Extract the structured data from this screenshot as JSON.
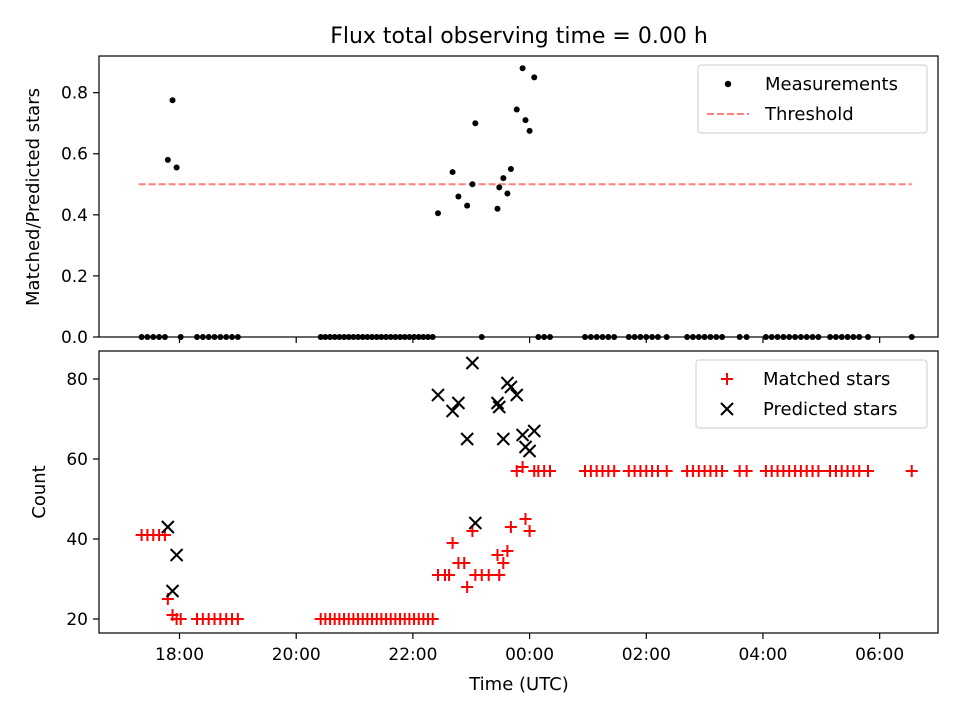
{
  "title": "Flux total observing time = 0.00 h",
  "colors": {
    "measure": "#000000",
    "threshold": "#ff7f7f",
    "matched": "#ff0000",
    "predicted": "#000000"
  },
  "chart_data": [
    {
      "type": "scatter",
      "panel": "top",
      "ylabel": "Matched/Predicted stars",
      "ylim": [
        0,
        0.92
      ],
      "yticks": [
        0.0,
        0.2,
        0.4,
        0.6,
        0.8
      ],
      "ytick_labels": [
        "0.0",
        "0.2",
        "0.4",
        "0.6",
        "0.8"
      ],
      "legend_position": "upper right",
      "series": [
        {
          "name": "Measurements",
          "marker": "dot",
          "points": [
            [
              17.35,
              0
            ],
            [
              17.45,
              0
            ],
            [
              17.55,
              0
            ],
            [
              17.65,
              0
            ],
            [
              17.75,
              0
            ],
            [
              17.8,
              0.58
            ],
            [
              17.88,
              0.775
            ],
            [
              17.95,
              0.555
            ],
            [
              18.02,
              0
            ],
            [
              18.3,
              0
            ],
            [
              18.4,
              0
            ],
            [
              18.5,
              0
            ],
            [
              18.6,
              0
            ],
            [
              18.7,
              0
            ],
            [
              18.8,
              0
            ],
            [
              18.9,
              0
            ],
            [
              19.0,
              0
            ],
            [
              20.42,
              0
            ],
            [
              20.5,
              0
            ],
            [
              20.58,
              0
            ],
            [
              20.66,
              0
            ],
            [
              20.74,
              0
            ],
            [
              20.82,
              0
            ],
            [
              20.9,
              0
            ],
            [
              20.98,
              0
            ],
            [
              21.06,
              0
            ],
            [
              21.14,
              0
            ],
            [
              21.22,
              0
            ],
            [
              21.3,
              0
            ],
            [
              21.38,
              0
            ],
            [
              21.46,
              0
            ],
            [
              21.54,
              0
            ],
            [
              21.62,
              0
            ],
            [
              21.7,
              0
            ],
            [
              21.78,
              0
            ],
            [
              21.86,
              0
            ],
            [
              21.94,
              0
            ],
            [
              22.02,
              0
            ],
            [
              22.1,
              0
            ],
            [
              22.18,
              0
            ],
            [
              22.26,
              0
            ],
            [
              22.34,
              0
            ],
            [
              22.43,
              0.405
            ],
            [
              22.68,
              0.54
            ],
            [
              22.78,
              0.46
            ],
            [
              22.93,
              0.43
            ],
            [
              23.02,
              0.5
            ],
            [
              23.07,
              0.7
            ],
            [
              23.18,
              0
            ],
            [
              23.45,
              0.42
            ],
            [
              23.48,
              0.49
            ],
            [
              23.55,
              0.52
            ],
            [
              23.62,
              0.47
            ],
            [
              23.68,
              0.55
            ],
            [
              23.78,
              0.745
            ],
            [
              23.88,
              0.88
            ],
            [
              23.93,
              0.71
            ],
            [
              24.0,
              0.675
            ],
            [
              24.08,
              0.85
            ],
            [
              24.15,
              0
            ],
            [
              24.25,
              0
            ],
            [
              24.35,
              0
            ],
            [
              24.95,
              0
            ],
            [
              25.05,
              0
            ],
            [
              25.15,
              0
            ],
            [
              25.25,
              0
            ],
            [
              25.35,
              0
            ],
            [
              25.45,
              0
            ],
            [
              25.7,
              0
            ],
            [
              25.8,
              0
            ],
            [
              25.9,
              0
            ],
            [
              26.0,
              0
            ],
            [
              26.1,
              0
            ],
            [
              26.2,
              0
            ],
            [
              26.35,
              0
            ],
            [
              26.7,
              0
            ],
            [
              26.8,
              0
            ],
            [
              26.9,
              0
            ],
            [
              27.0,
              0
            ],
            [
              27.1,
              0
            ],
            [
              27.2,
              0
            ],
            [
              27.3,
              0
            ],
            [
              27.6,
              0
            ],
            [
              27.72,
              0
            ],
            [
              28.05,
              0
            ],
            [
              28.15,
              0
            ],
            [
              28.25,
              0
            ],
            [
              28.35,
              0
            ],
            [
              28.45,
              0
            ],
            [
              28.55,
              0
            ],
            [
              28.65,
              0
            ],
            [
              28.75,
              0
            ],
            [
              28.85,
              0
            ],
            [
              28.95,
              0
            ],
            [
              29.15,
              0
            ],
            [
              29.25,
              0
            ],
            [
              29.35,
              0
            ],
            [
              29.45,
              0
            ],
            [
              29.55,
              0
            ],
            [
              29.65,
              0
            ],
            [
              29.8,
              0
            ],
            [
              30.55,
              0
            ]
          ]
        },
        {
          "name": "Threshold",
          "style": "dashed",
          "points": [
            [
              17.3,
              0.5
            ],
            [
              30.55,
              0.5
            ]
          ]
        }
      ]
    },
    {
      "type": "scatter",
      "panel": "bottom",
      "xlabel": "Time (UTC)",
      "ylabel": "Count",
      "ylim": [
        16.5,
        87
      ],
      "yticks": [
        20,
        40,
        60,
        80
      ],
      "ytick_labels": [
        "20",
        "40",
        "60",
        "80"
      ],
      "xlim": [
        16.62,
        31.0
      ],
      "xticks": [
        18,
        20,
        22,
        24,
        26,
        28,
        30
      ],
      "xtick_labels": [
        "18:00",
        "20:00",
        "22:00",
        "00:00",
        "02:00",
        "04:00",
        "06:00"
      ],
      "legend_position": "upper right",
      "series": [
        {
          "name": "Matched stars",
          "marker": "plus",
          "points": [
            [
              17.35,
              41
            ],
            [
              17.45,
              41
            ],
            [
              17.55,
              41
            ],
            [
              17.65,
              41
            ],
            [
              17.75,
              41
            ],
            [
              17.8,
              25
            ],
            [
              17.88,
              21
            ],
            [
              17.95,
              20
            ],
            [
              18.02,
              20
            ],
            [
              18.3,
              20
            ],
            [
              18.4,
              20
            ],
            [
              18.5,
              20
            ],
            [
              18.6,
              20
            ],
            [
              18.7,
              20
            ],
            [
              18.8,
              20
            ],
            [
              18.9,
              20
            ],
            [
              19.0,
              20
            ],
            [
              20.42,
              20
            ],
            [
              20.5,
              20
            ],
            [
              20.58,
              20
            ],
            [
              20.66,
              20
            ],
            [
              20.74,
              20
            ],
            [
              20.82,
              20
            ],
            [
              20.9,
              20
            ],
            [
              20.98,
              20
            ],
            [
              21.06,
              20
            ],
            [
              21.14,
              20
            ],
            [
              21.22,
              20
            ],
            [
              21.3,
              20
            ],
            [
              21.38,
              20
            ],
            [
              21.46,
              20
            ],
            [
              21.54,
              20
            ],
            [
              21.62,
              20
            ],
            [
              21.7,
              20
            ],
            [
              21.78,
              20
            ],
            [
              21.86,
              20
            ],
            [
              21.94,
              20
            ],
            [
              22.02,
              20
            ],
            [
              22.1,
              20
            ],
            [
              22.18,
              20
            ],
            [
              22.26,
              20
            ],
            [
              22.34,
              20
            ],
            [
              22.43,
              31
            ],
            [
              22.55,
              31
            ],
            [
              22.62,
              31
            ],
            [
              22.68,
              39
            ],
            [
              22.78,
              34
            ],
            [
              22.88,
              34
            ],
            [
              22.93,
              28
            ],
            [
              23.02,
              42
            ],
            [
              23.07,
              31
            ],
            [
              23.18,
              31
            ],
            [
              23.3,
              31
            ],
            [
              23.45,
              36
            ],
            [
              23.48,
              31
            ],
            [
              23.55,
              34
            ],
            [
              23.62,
              37
            ],
            [
              23.68,
              43
            ],
            [
              23.78,
              57
            ],
            [
              23.88,
              58
            ],
            [
              23.93,
              45
            ],
            [
              24.0,
              42
            ],
            [
              24.08,
              57
            ],
            [
              24.15,
              57
            ],
            [
              24.25,
              57
            ],
            [
              24.35,
              57
            ],
            [
              24.95,
              57
            ],
            [
              25.05,
              57
            ],
            [
              25.15,
              57
            ],
            [
              25.25,
              57
            ],
            [
              25.35,
              57
            ],
            [
              25.45,
              57
            ],
            [
              25.7,
              57
            ],
            [
              25.8,
              57
            ],
            [
              25.9,
              57
            ],
            [
              26.0,
              57
            ],
            [
              26.1,
              57
            ],
            [
              26.2,
              57
            ],
            [
              26.35,
              57
            ],
            [
              26.7,
              57
            ],
            [
              26.8,
              57
            ],
            [
              26.9,
              57
            ],
            [
              27.0,
              57
            ],
            [
              27.1,
              57
            ],
            [
              27.2,
              57
            ],
            [
              27.3,
              57
            ],
            [
              27.6,
              57
            ],
            [
              27.72,
              57
            ],
            [
              28.05,
              57
            ],
            [
              28.15,
              57
            ],
            [
              28.25,
              57
            ],
            [
              28.35,
              57
            ],
            [
              28.45,
              57
            ],
            [
              28.55,
              57
            ],
            [
              28.65,
              57
            ],
            [
              28.75,
              57
            ],
            [
              28.85,
              57
            ],
            [
              28.95,
              57
            ],
            [
              29.15,
              57
            ],
            [
              29.25,
              57
            ],
            [
              29.35,
              57
            ],
            [
              29.45,
              57
            ],
            [
              29.55,
              57
            ],
            [
              29.65,
              57
            ],
            [
              29.8,
              57
            ],
            [
              30.55,
              57
            ]
          ]
        },
        {
          "name": "Predicted stars",
          "marker": "x",
          "points": [
            [
              17.8,
              43
            ],
            [
              17.88,
              27
            ],
            [
              17.95,
              36
            ],
            [
              22.43,
              76
            ],
            [
              22.68,
              72
            ],
            [
              22.78,
              74
            ],
            [
              22.93,
              65
            ],
            [
              23.02,
              84
            ],
            [
              23.07,
              44
            ],
            [
              23.45,
              74
            ],
            [
              23.48,
              73
            ],
            [
              23.55,
              65
            ],
            [
              23.62,
              79
            ],
            [
              23.68,
              78
            ],
            [
              23.78,
              76
            ],
            [
              23.88,
              66
            ],
            [
              23.93,
              63
            ],
            [
              24.0,
              62
            ],
            [
              24.08,
              67
            ]
          ]
        }
      ]
    }
  ]
}
